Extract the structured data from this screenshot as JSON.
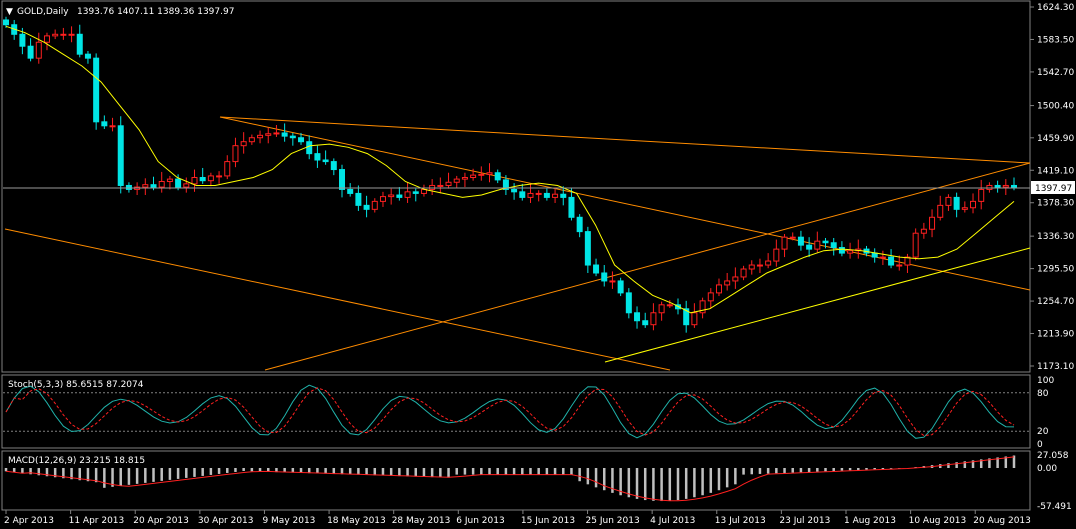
{
  "main": {
    "symbol_label": "GOLD,Daily",
    "ohlc": "1393.76 1407.11 1389.36 1397.97",
    "price_ticks": [
      "1624.30",
      "1583.50",
      "1542.70",
      "1500.40",
      "1459.90",
      "1419.10",
      "1378.30",
      "1336.30",
      "1295.50",
      "1254.70",
      "1213.90",
      "1173.10"
    ],
    "current_price": "1397.97"
  },
  "stoch": {
    "label": "Stoch(5,3,3) 85.6515 87.2074",
    "ticks": [
      "100",
      "80",
      "20",
      "0"
    ]
  },
  "macd": {
    "label": "MACD(12,26,9) 23.215 18.815",
    "ticks": [
      "27.058",
      "0.00",
      "-57.491"
    ]
  },
  "time_labels": [
    "2 Apr 2013",
    "11 Apr 2013",
    "20 Apr 2013",
    "30 Apr 2013",
    "9 May 2013",
    "18 May 2013",
    "28 May 2013",
    "6 Jun 2013",
    "15 Jun 2013",
    "25 Jun 2013",
    "4 Jul 2013",
    "13 Jul 2013",
    "23 Jul 2013",
    "1 Aug 2013",
    "10 Aug 2013",
    "20 Aug 2013"
  ],
  "colors": {
    "bull": "#00e5e5",
    "bear": "#ff2020",
    "ma": "#ffff00",
    "channel": "#ff8c00",
    "support": "#ffff00",
    "grid": "#808080"
  },
  "chart_data": {
    "type": "candlestick",
    "closes": [
      1602,
      1590,
      1575,
      1560,
      1580,
      1588,
      1590,
      1590,
      1590,
      1565,
      1560,
      1480,
      1475,
      1475,
      1400,
      1395,
      1398,
      1401,
      1398,
      1405,
      1408,
      1398,
      1402,
      1410,
      1406,
      1412,
      1412,
      1430,
      1450,
      1455,
      1460,
      1463,
      1465,
      1466,
      1462,
      1460,
      1455,
      1440,
      1432,
      1430,
      1420,
      1395,
      1390,
      1375,
      1370,
      1380,
      1386,
      1388,
      1385,
      1392,
      1390,
      1395,
      1400,
      1400,
      1404,
      1408,
      1410,
      1413,
      1414,
      1416,
      1407,
      1395,
      1392,
      1385,
      1390,
      1390,
      1385,
      1389,
      1385,
      1360,
      1342,
      1300,
      1290,
      1280,
      1280,
      1265,
      1240,
      1230,
      1225,
      1240,
      1250,
      1250,
      1245,
      1225,
      1240,
      1255,
      1265,
      1275,
      1280,
      1285,
      1295,
      1300,
      1300,
      1305,
      1320,
      1335,
      1335,
      1325,
      1320,
      1330,
      1328,
      1322,
      1315,
      1318,
      1320,
      1315,
      1310,
      1310,
      1300,
      1300,
      1310,
      1340,
      1345,
      1360,
      1375,
      1385,
      1370,
      1372,
      1380,
      1395,
      1400,
      1398,
      1400,
      1398
    ],
    "ma": [
      1600,
      1592,
      1580,
      1565,
      1550,
      1530,
      1500,
      1470,
      1430,
      1410,
      1400,
      1400,
      1405,
      1410,
      1420,
      1440,
      1450,
      1452,
      1448,
      1440,
      1425,
      1405,
      1395,
      1390,
      1385,
      1388,
      1395,
      1400,
      1403,
      1400,
      1390,
      1350,
      1300,
      1280,
      1262,
      1252,
      1240,
      1245,
      1260,
      1275,
      1290,
      1300,
      1310,
      1318,
      1320,
      1318,
      1314,
      1310,
      1308,
      1310,
      1320,
      1340,
      1360,
      1380
    ]
  }
}
